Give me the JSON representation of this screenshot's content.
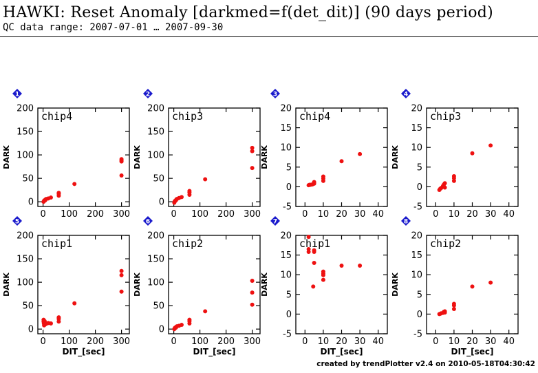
{
  "header": {
    "title": "HAWKI: Reset Anomaly [darkmed=f(det_dit)] (90 days period)",
    "subtitle": "QC data range: 2007-07-01 … 2007-09-30"
  },
  "footer": {
    "text": "created by trendPlotter v2.4 on 2010-05-18T04:30:42"
  },
  "colors": {
    "marker": "#ee1111",
    "badge": "#1a1acc",
    "axes": "#000000"
  },
  "chart_data": [
    {
      "id": 1,
      "badge": "1",
      "label": "chip4",
      "type": "scatter",
      "xlim": [
        -20,
        330
      ],
      "ylim": [
        -10,
        200
      ],
      "xticks": [
        0,
        100,
        200,
        300
      ],
      "yticks": [
        0,
        50,
        100,
        150,
        200
      ],
      "xlabel": "",
      "ylabel": "DARK",
      "points": [
        [
          2,
          0
        ],
        [
          3,
          1
        ],
        [
          4,
          2
        ],
        [
          5,
          3
        ],
        [
          8,
          3
        ],
        [
          10,
          5
        ],
        [
          12,
          6
        ],
        [
          20,
          7
        ],
        [
          30,
          9
        ],
        [
          60,
          13
        ],
        [
          60,
          17
        ],
        [
          60,
          19
        ],
        [
          120,
          38
        ],
        [
          300,
          56
        ],
        [
          300,
          86
        ],
        [
          300,
          88
        ],
        [
          300,
          91
        ]
      ]
    },
    {
      "id": 2,
      "badge": "2",
      "label": "chip3",
      "type": "scatter",
      "xlim": [
        -20,
        330
      ],
      "ylim": [
        -10,
        200
      ],
      "xticks": [
        0,
        100,
        200,
        300
      ],
      "yticks": [
        0,
        50,
        100,
        150,
        200
      ],
      "xlabel": "",
      "ylabel": "DARK",
      "points": [
        [
          2,
          -2
        ],
        [
          3,
          0
        ],
        [
          4,
          1
        ],
        [
          5,
          2
        ],
        [
          8,
          3
        ],
        [
          10,
          5
        ],
        [
          12,
          6
        ],
        [
          20,
          8
        ],
        [
          30,
          10
        ],
        [
          60,
          15
        ],
        [
          60,
          20
        ],
        [
          60,
          23
        ],
        [
          120,
          48
        ],
        [
          300,
          72
        ],
        [
          300,
          108
        ],
        [
          300,
          115
        ]
      ]
    },
    {
      "id": 3,
      "badge": "3",
      "label": "chip4",
      "type": "scatter",
      "xlim": [
        -5,
        45
      ],
      "ylim": [
        -5,
        20
      ],
      "xticks": [
        0,
        10,
        20,
        30,
        40
      ],
      "yticks": [
        -5,
        0,
        5,
        10,
        15,
        20
      ],
      "xlabel": "",
      "ylabel": "DARK",
      "points": [
        [
          2,
          0.4
        ],
        [
          2.5,
          0.5
        ],
        [
          3,
          0.5
        ],
        [
          4,
          0.6
        ],
        [
          5,
          0.8
        ],
        [
          5,
          1.0
        ],
        [
          5,
          1.2
        ],
        [
          10,
          1.5
        ],
        [
          10,
          2.1
        ],
        [
          10,
          2.6
        ],
        [
          20,
          6.5
        ],
        [
          30,
          8.3
        ]
      ]
    },
    {
      "id": 4,
      "badge": "4",
      "label": "chip3",
      "type": "scatter",
      "xlim": [
        -5,
        45
      ],
      "ylim": [
        -5,
        20
      ],
      "xticks": [
        0,
        10,
        20,
        30,
        40
      ],
      "yticks": [
        -5,
        0,
        5,
        10,
        15,
        20
      ],
      "xlabel": "",
      "ylabel": "DARK",
      "points": [
        [
          2,
          -0.8
        ],
        [
          2.5,
          -0.5
        ],
        [
          3,
          -0.3
        ],
        [
          4,
          0.2
        ],
        [
          4.5,
          0.6
        ],
        [
          5,
          0.9
        ],
        [
          5,
          -0.2
        ],
        [
          10,
          1.5
        ],
        [
          10,
          2.2
        ],
        [
          10,
          2.7
        ],
        [
          20,
          8.5
        ],
        [
          30,
          10.5
        ]
      ]
    },
    {
      "id": 5,
      "badge": "5",
      "label": "chip1",
      "type": "scatter",
      "xlim": [
        -20,
        330
      ],
      "ylim": [
        -10,
        200
      ],
      "xticks": [
        0,
        100,
        200,
        300
      ],
      "yticks": [
        0,
        50,
        100,
        150,
        200
      ],
      "xlabel": "DIT_[sec]",
      "ylabel": "DARK",
      "points": [
        [
          2,
          20
        ],
        [
          2,
          16
        ],
        [
          3,
          12
        ],
        [
          4,
          8
        ],
        [
          5,
          13
        ],
        [
          6,
          17
        ],
        [
          8,
          10
        ],
        [
          10,
          11
        ],
        [
          15,
          12
        ],
        [
          20,
          13
        ],
        [
          30,
          12
        ],
        [
          60,
          16
        ],
        [
          60,
          22
        ],
        [
          60,
          25
        ],
        [
          120,
          55
        ],
        [
          300,
          80
        ],
        [
          300,
          115
        ],
        [
          300,
          124
        ]
      ]
    },
    {
      "id": 6,
      "badge": "6",
      "label": "chip2",
      "type": "scatter",
      "xlim": [
        -20,
        330
      ],
      "ylim": [
        -10,
        200
      ],
      "xticks": [
        0,
        100,
        200,
        300
      ],
      "yticks": [
        0,
        50,
        100,
        150,
        200
      ],
      "xlabel": "DIT_[sec]",
      "ylabel": "DARK",
      "points": [
        [
          2,
          0
        ],
        [
          3,
          1
        ],
        [
          4,
          2
        ],
        [
          5,
          3
        ],
        [
          8,
          3
        ],
        [
          10,
          5
        ],
        [
          12,
          6
        ],
        [
          20,
          7
        ],
        [
          30,
          9
        ],
        [
          60,
          12
        ],
        [
          60,
          17
        ],
        [
          60,
          20
        ],
        [
          120,
          38
        ],
        [
          300,
          52
        ],
        [
          300,
          78
        ],
        [
          300,
          103
        ]
      ]
    },
    {
      "id": 7,
      "badge": "7",
      "label": "chip1",
      "type": "scatter",
      "xlim": [
        -5,
        45
      ],
      "ylim": [
        -5,
        20
      ],
      "xticks": [
        0,
        10,
        20,
        30,
        40
      ],
      "yticks": [
        -5,
        0,
        5,
        10,
        15,
        20
      ],
      "xlabel": "DIT_[sec]",
      "ylabel": "DARK",
      "points": [
        [
          2,
          19.6
        ],
        [
          2,
          16.5
        ],
        [
          2,
          15.8
        ],
        [
          5,
          16.2
        ],
        [
          5,
          15.8
        ],
        [
          5,
          13
        ],
        [
          4.5,
          7
        ],
        [
          10,
          10.8
        ],
        [
          10,
          10.3
        ],
        [
          10,
          9.9
        ],
        [
          10,
          8.7
        ],
        [
          20,
          12.3
        ],
        [
          30,
          12.3
        ]
      ]
    },
    {
      "id": 8,
      "badge": "8",
      "label": "chip2",
      "type": "scatter",
      "xlim": [
        -5,
        45
      ],
      "ylim": [
        -5,
        20
      ],
      "xticks": [
        0,
        10,
        20,
        30,
        40
      ],
      "yticks": [
        -5,
        0,
        5,
        10,
        15,
        20
      ],
      "xlabel": "DIT_[sec]",
      "ylabel": "DARK",
      "points": [
        [
          2,
          0
        ],
        [
          2.5,
          0.1
        ],
        [
          3,
          0.2
        ],
        [
          4,
          0.3
        ],
        [
          4.5,
          0.6
        ],
        [
          5,
          0.7
        ],
        [
          5,
          0.4
        ],
        [
          10,
          1.3
        ],
        [
          10,
          2.2
        ],
        [
          10,
          2.6
        ],
        [
          20,
          7
        ],
        [
          30,
          8
        ]
      ]
    }
  ]
}
